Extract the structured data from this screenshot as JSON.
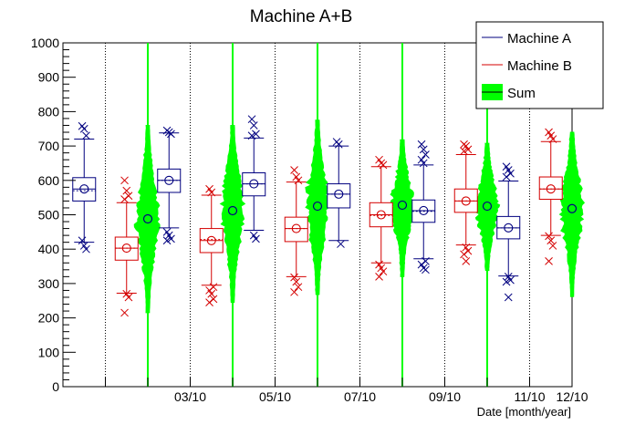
{
  "chart_data": {
    "type": "boxplot",
    "title": "Machine A+B",
    "xlabel": "Date [month/year]",
    "ylabel": "",
    "ylim": [
      0,
      1000
    ],
    "yticks": [
      0,
      100,
      200,
      300,
      400,
      500,
      600,
      700,
      800,
      900,
      1000
    ],
    "xticks": [
      "03/10",
      "05/10",
      "07/10",
      "09/10",
      "11/10",
      "12/10"
    ],
    "legend": {
      "position": "top-right",
      "entries": [
        {
          "label": "Machine A",
          "color": "#00007f"
        },
        {
          "label": "Machine B",
          "color": "#d40000"
        },
        {
          "label": "Sum",
          "color": "#00ff00"
        }
      ]
    },
    "series": [
      {
        "name": "Machine A",
        "color": "#00007f",
        "boxes": [
          {
            "month": 1,
            "whisker_low": 420,
            "q1": 540,
            "median": 575,
            "q3": 608,
            "whisker_high": 720,
            "mean": 570,
            "outliers": [
              758,
              750,
              730,
              425,
              410,
              400
            ]
          },
          {
            "month": 3,
            "whisker_low": 462,
            "q1": 565,
            "median": 600,
            "q3": 633,
            "whisker_high": 738,
            "mean": 600,
            "outliers": [
              745,
              740,
              735,
              450,
              440,
              430,
              425
            ]
          },
          {
            "month": 5,
            "whisker_low": 455,
            "q1": 555,
            "median": 590,
            "q3": 622,
            "whisker_high": 723,
            "mean": 590,
            "outliers": [
              778,
              760,
              735,
              730,
              440,
              430
            ]
          },
          {
            "month": 7,
            "whisker_low": 425,
            "q1": 520,
            "median": 560,
            "q3": 590,
            "whisker_high": 700,
            "mean": 560,
            "outliers": [
              712,
              705,
              415
            ]
          },
          {
            "month": 9,
            "whisker_low": 372,
            "q1": 478,
            "median": 512,
            "q3": 543,
            "whisker_high": 645,
            "mean": 510,
            "outliers": [
              705,
              690,
              675,
              660,
              650,
              365,
              355,
              345,
              340
            ]
          },
          {
            "month": 11,
            "whisker_low": 322,
            "q1": 430,
            "median": 462,
            "q3": 495,
            "whisker_high": 598,
            "mean": 462,
            "outliers": [
              640,
              630,
              620,
              610,
              320,
              310,
              305,
              260
            ]
          }
        ]
      },
      {
        "name": "Machine B",
        "color": "#d40000",
        "boxes": [
          {
            "month": 2,
            "whisker_low": 272,
            "q1": 368,
            "median": 403,
            "q3": 435,
            "whisker_high": 535,
            "mean": 403,
            "outliers": [
              600,
              570,
              555,
              545,
              270,
              260,
              215
            ]
          },
          {
            "month": 4,
            "whisker_low": 295,
            "q1": 390,
            "median": 425,
            "q3": 460,
            "whisker_high": 557,
            "mean": 428,
            "outliers": [
              575,
              565,
              290,
              280,
              270,
              255,
              245
            ]
          },
          {
            "month": 6,
            "whisker_low": 320,
            "q1": 422,
            "median": 460,
            "q3": 493,
            "whisker_high": 595,
            "mean": 460,
            "outliers": [
              630,
              610,
              600,
              318,
              305,
              290,
              275
            ]
          },
          {
            "month": 8,
            "whisker_low": 360,
            "q1": 465,
            "median": 500,
            "q3": 535,
            "whisker_high": 640,
            "mean": 498,
            "outliers": [
              660,
              650,
              645,
              355,
              345,
              335,
              320
            ]
          },
          {
            "month": 10,
            "whisker_low": 412,
            "q1": 507,
            "median": 540,
            "q3": 575,
            "whisker_high": 675,
            "mean": 540,
            "outliers": [
              705,
              700,
              690,
              685,
              405,
              395,
              385,
              365
            ]
          },
          {
            "month": 12,
            "whisker_low": 440,
            "q1": 545,
            "median": 575,
            "q3": 610,
            "whisker_high": 713,
            "mean": 575,
            "outliers": [
              740,
              730,
              720,
              438,
              425,
              410,
              365
            ]
          }
        ]
      }
    ],
    "sum_violins": [
      {
        "after_month": 2,
        "min": 215,
        "mean": 488,
        "max": 760
      },
      {
        "after_month": 4,
        "min": 245,
        "mean": 512,
        "max": 760
      },
      {
        "after_month": 6,
        "min": 268,
        "mean": 525,
        "max": 775
      },
      {
        "after_month": 8,
        "min": 320,
        "mean": 528,
        "max": 718
      },
      {
        "after_month": 10,
        "min": 338,
        "mean": 525,
        "max": 708
      },
      {
        "after_month": 12,
        "min": 262,
        "mean": 518,
        "max": 740
      }
    ],
    "sum_color": "#00ff00"
  }
}
